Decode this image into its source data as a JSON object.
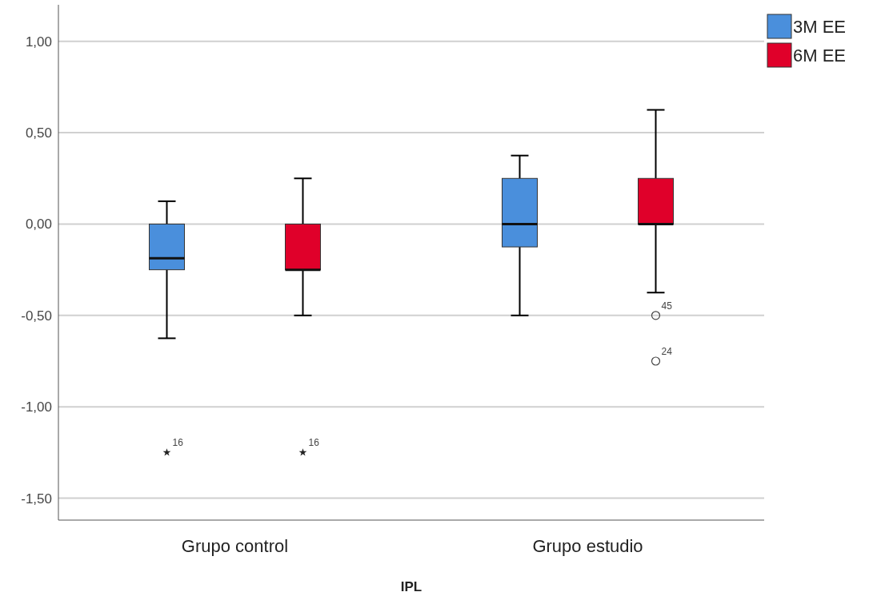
{
  "chart_data": {
    "type": "box",
    "xlabel": "IPL",
    "categories": [
      "Grupo control",
      "Grupo estudio"
    ],
    "series": [
      {
        "name": "3M EE",
        "color": "#4a8fdc",
        "boxes": [
          {
            "low": -0.625,
            "q1": -0.25,
            "median": -0.1875,
            "q3": 0,
            "high": 0.125,
            "outliers": [
              -1.25
            ]
          },
          {
            "low": -0.5,
            "q1": -0.125,
            "median": 0,
            "q3": 0.25,
            "high": 0.375
          }
        ]
      },
      {
        "name": "6M EE",
        "color": "#e0002a",
        "boxes": [
          {
            "low": -0.5,
            "q1": -0.25,
            "median": -0.25,
            "q3": 0,
            "high": 0.25,
            "outliers": [
              -1.25
            ]
          },
          {
            "low": -0.375,
            "q1": 0,
            "median": 0,
            "q3": 0.25,
            "high": 0.625,
            "outliers": [
              -0.5,
              -0.75
            ]
          }
        ]
      }
    ],
    "ylim": [
      -1.62,
      1.2
    ],
    "yticks": [
      {
        "value": -1.5,
        "label": "-1,50"
      },
      {
        "value": -1,
        "label": "-1,00"
      },
      {
        "value": -0.5,
        "label": "-0,50"
      },
      {
        "value": 0,
        "label": "0,00"
      },
      {
        "value": 0.5,
        "label": "0,50"
      },
      {
        "value": 1,
        "label": "1,00"
      }
    ],
    "grid": "y",
    "legend": "top right",
    "annotations": [
      "16",
      "16",
      "45",
      "24"
    ]
  }
}
